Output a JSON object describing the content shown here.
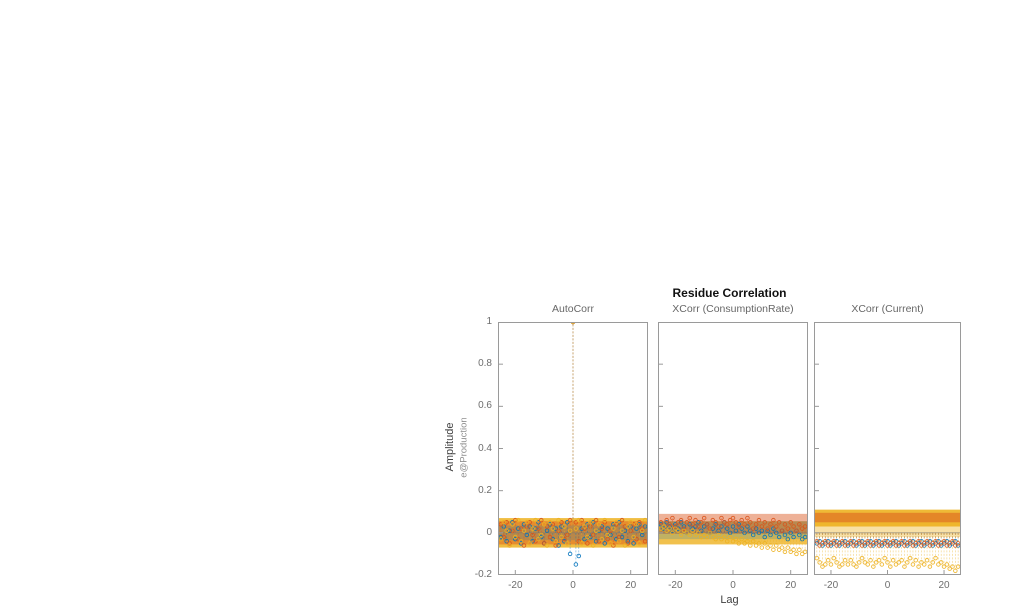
{
  "figure": {
    "title": "Residue Correlation",
    "xlabel": "Lag",
    "ylabel": "Amplitude",
    "ylabel_sub": "e@Production"
  },
  "colors": {
    "series1": "#0072BD",
    "series2": "#D95319",
    "series3": "#EDB120",
    "axis": "#9a9a9a",
    "tick_text": "#6e6e6e"
  },
  "chart_data": [
    {
      "type": "stem",
      "title": "AutoCorr",
      "xlim": [
        -26,
        26
      ],
      "ylim": [
        -0.2,
        1
      ],
      "xticks": [
        -20,
        0,
        20
      ],
      "xticklabels": [
        "-20",
        "0",
        "20"
      ],
      "yticks": [
        -0.2,
        0,
        0.2,
        0.4,
        0.6,
        0.8,
        1
      ],
      "yticklabels": [
        "-0.2",
        "0",
        "0.2",
        "0.4",
        "0.6",
        "0.8",
        "1"
      ],
      "show_yticklabels": true,
      "x_start": -25,
      "x_step": 1,
      "bands": [
        {
          "color": "#EDB120",
          "low": -0.07,
          "high": 0.07,
          "alpha": 0.85
        },
        {
          "color": "#D95319",
          "low": -0.055,
          "high": 0.055,
          "alpha": 0.45
        },
        {
          "color": "#0072BD",
          "low": -0.035,
          "high": 0.035,
          "alpha": 0.2
        }
      ],
      "series": [
        {
          "name": "series1",
          "color": "#0072BD",
          "values": [
            -0.02,
            0.03,
            -0.04,
            0.01,
            0.05,
            -0.03,
            0.02,
            -0.05,
            0.04,
            -0.01,
            0.03,
            -0.04,
            0.02,
            0.05,
            -0.02,
            -0.05,
            0.01,
            0.04,
            -0.03,
            0.02,
            -0.06,
            0.03,
            -0.04,
            0.05,
            -0.1,
            1.0,
            -0.15,
            -0.11,
            0.02,
            -0.03,
            0.04,
            -0.02,
            0.05,
            -0.04,
            0.01,
            0.03,
            -0.05,
            0.02,
            -0.01,
            0.04,
            -0.03,
            0.05,
            -0.02,
            0.01,
            -0.04,
            0.03,
            -0.05,
            0.02,
            0.04,
            -0.01,
            0.03
          ]
        },
        {
          "name": "series2",
          "color": "#D95319",
          "values": [
            0.04,
            -0.02,
            0.05,
            -0.05,
            0.01,
            0.06,
            -0.03,
            0.02,
            -0.06,
            0.03,
            0.05,
            -0.01,
            -0.04,
            0.02,
            0.06,
            -0.05,
            0.03,
            -0.02,
            0.04,
            -0.06,
            0.01,
            0.05,
            -0.03,
            -0.01,
            0.06,
            1.0,
            0.05,
            -0.04,
            0.06,
            0.02,
            -0.05,
            0.03,
            -0.01,
            0.06,
            -0.04,
            0.02,
            0.05,
            -0.03,
            0.01,
            -0.06,
            0.04,
            -0.02,
            0.06,
            0.03,
            -0.05,
            0.01,
            0.04,
            -0.03,
            0.05,
            0.02,
            -0.04
          ]
        },
        {
          "name": "series3",
          "color": "#EDB120",
          "values": [
            -0.03,
            0.05,
            0.01,
            -0.06,
            0.04,
            -0.02,
            0.06,
            -0.04,
            0.01,
            0.05,
            -0.05,
            0.02,
            0.06,
            -0.03,
            -0.01,
            0.04,
            -0.06,
            0.05,
            0.02,
            -0.04,
            0.06,
            -0.02,
            0.03,
            -0.05,
            0.01,
            1.0,
            0.02,
            0.06,
            -0.05,
            0.03,
            -0.02,
            0.05,
            -0.06,
            0.01,
            0.04,
            -0.03,
            0.06,
            -0.01,
            -0.05,
            0.02,
            0.05,
            -0.04,
            0.01,
            -0.06,
            0.03,
            0.05,
            -0.02,
            0.04,
            -0.05,
            0.01,
            0.06
          ]
        }
      ]
    },
    {
      "type": "stem",
      "title": "XCorr (ConsumptionRate)",
      "xlim": [
        -26,
        26
      ],
      "ylim": [
        -0.2,
        1
      ],
      "xticks": [
        -20,
        0,
        20
      ],
      "xticklabels": [
        "-20",
        "0",
        "20"
      ],
      "yticks": [
        -0.2,
        0,
        0.2,
        0.4,
        0.6,
        0.8,
        1
      ],
      "yticklabels": [
        "-0.2",
        "0",
        "0.2",
        "0.4",
        "0.6",
        "0.8",
        "1"
      ],
      "show_yticklabels": false,
      "x_start": -25,
      "x_step": 1,
      "bands": [
        {
          "color": "#EDB120",
          "low": -0.055,
          "high": 0.055,
          "alpha": 0.8
        },
        {
          "color": "#D95319",
          "low": -0.005,
          "high": 0.09,
          "alpha": 0.45
        },
        {
          "color": "#0072BD",
          "low": -0.03,
          "high": 0.055,
          "alpha": 0.2
        }
      ],
      "series": [
        {
          "name": "series1",
          "color": "#0072BD",
          "values": [
            0.04,
            0.02,
            0.05,
            0.03,
            0.01,
            0.04,
            0.02,
            0.05,
            0.03,
            0.0,
            0.04,
            0.02,
            0.03,
            0.05,
            0.01,
            0.03,
            0.04,
            0.0,
            0.02,
            0.04,
            0.01,
            0.03,
            0.05,
            0.02,
            0.0,
            0.03,
            0.01,
            0.04,
            0.02,
            0.0,
            0.03,
            0.01,
            -0.01,
            0.02,
            0.0,
            0.01,
            -0.02,
            0.01,
            -0.01,
            0.02,
            0.0,
            -0.02,
            0.01,
            -0.01,
            -0.03,
            0.0,
            -0.02,
            0.01,
            -0.01,
            -0.03,
            -0.02
          ]
        },
        {
          "name": "series2",
          "color": "#D95319",
          "values": [
            0.05,
            0.03,
            0.06,
            0.04,
            0.07,
            0.03,
            0.05,
            0.06,
            0.02,
            0.05,
            0.07,
            0.04,
            0.06,
            0.03,
            0.05,
            0.07,
            0.04,
            0.02,
            0.06,
            0.05,
            0.03,
            0.07,
            0.05,
            0.04,
            0.06,
            0.07,
            0.05,
            0.03,
            0.06,
            0.04,
            0.07,
            0.05,
            0.02,
            0.04,
            0.06,
            0.03,
            0.05,
            0.02,
            0.04,
            0.06,
            0.03,
            0.05,
            0.01,
            0.04,
            0.02,
            0.05,
            0.03,
            0.01,
            0.04,
            0.02,
            0.03
          ]
        },
        {
          "name": "series3",
          "color": "#EDB120",
          "values": [
            0.02,
            0.03,
            0.01,
            0.02,
            0.0,
            0.02,
            0.01,
            -0.01,
            0.01,
            0.0,
            -0.01,
            0.01,
            -0.01,
            0.0,
            -0.02,
            -0.01,
            -0.02,
            0.0,
            -0.02,
            -0.03,
            -0.01,
            -0.03,
            -0.02,
            -0.04,
            -0.02,
            -0.04,
            -0.03,
            -0.05,
            -0.03,
            -0.05,
            -0.04,
            -0.06,
            -0.04,
            -0.06,
            -0.05,
            -0.07,
            -0.05,
            -0.07,
            -0.06,
            -0.08,
            -0.06,
            -0.08,
            -0.07,
            -0.09,
            -0.07,
            -0.09,
            -0.08,
            -0.1,
            -0.08,
            -0.1,
            -0.09
          ]
        }
      ]
    },
    {
      "type": "stem",
      "title": "XCorr (Current)",
      "xlim": [
        -26,
        26
      ],
      "ylim": [
        -0.2,
        1
      ],
      "xticks": [
        -20,
        0,
        20
      ],
      "xticklabels": [
        "-20",
        "0",
        "20"
      ],
      "yticks": [
        -0.2,
        0,
        0.2,
        0.4,
        0.6,
        0.8,
        1
      ],
      "yticklabels": [
        "-0.2",
        "0",
        "0.2",
        "0.4",
        "0.6",
        "0.8",
        "1"
      ],
      "show_yticklabels": false,
      "x_start": -25,
      "x_step": 1,
      "bands": [
        {
          "color": "#EDB120",
          "low": -0.02,
          "high": 0.05,
          "alpha": 0.4
        },
        {
          "color": "#EDB120",
          "low": 0.03,
          "high": 0.11,
          "alpha": 0.9
        },
        {
          "color": "#D95319",
          "low": 0.05,
          "high": 0.095,
          "alpha": 0.5
        }
      ],
      "series": [
        {
          "name": "series1",
          "color": "#0072BD",
          "values": [
            -0.05,
            -0.04,
            -0.06,
            -0.05,
            -0.04,
            -0.06,
            -0.05,
            -0.04,
            -0.06,
            -0.05,
            -0.04,
            -0.06,
            -0.05,
            -0.04,
            -0.06,
            -0.05,
            -0.04,
            -0.06,
            -0.05,
            -0.04,
            -0.06,
            -0.05,
            -0.04,
            -0.06,
            -0.05,
            -0.04,
            -0.06,
            -0.05,
            -0.04,
            -0.06,
            -0.05,
            -0.04,
            -0.06,
            -0.05,
            -0.04,
            -0.06,
            -0.05,
            -0.04,
            -0.06,
            -0.05,
            -0.04,
            -0.06,
            -0.05,
            -0.04,
            -0.06,
            -0.05,
            -0.04,
            -0.06,
            -0.05,
            -0.04,
            -0.06
          ]
        },
        {
          "name": "series2",
          "color": "#D95319",
          "values": [
            -0.04,
            -0.06,
            -0.05,
            -0.04,
            -0.06,
            -0.05,
            -0.04,
            -0.06,
            -0.05,
            -0.04,
            -0.06,
            -0.05,
            -0.04,
            -0.06,
            -0.05,
            -0.04,
            -0.06,
            -0.05,
            -0.04,
            -0.06,
            -0.05,
            -0.04,
            -0.06,
            -0.05,
            -0.04,
            -0.06,
            -0.05,
            -0.04,
            -0.06,
            -0.05,
            -0.04,
            -0.06,
            -0.05,
            -0.04,
            -0.06,
            -0.05,
            -0.04,
            -0.06,
            -0.05,
            -0.04,
            -0.06,
            -0.05,
            -0.04,
            -0.06,
            -0.05,
            -0.04,
            -0.06,
            -0.05,
            -0.04,
            -0.06,
            -0.05
          ]
        },
        {
          "name": "series3",
          "color": "#EDB120",
          "values": [
            -0.12,
            -0.14,
            -0.16,
            -0.15,
            -0.13,
            -0.15,
            -0.12,
            -0.14,
            -0.16,
            -0.15,
            -0.13,
            -0.15,
            -0.13,
            -0.15,
            -0.16,
            -0.14,
            -0.12,
            -0.14,
            -0.15,
            -0.13,
            -0.16,
            -0.14,
            -0.13,
            -0.15,
            -0.12,
            -0.14,
            -0.16,
            -0.13,
            -0.15,
            -0.14,
            -0.13,
            -0.16,
            -0.14,
            -0.12,
            -0.15,
            -0.13,
            -0.16,
            -0.14,
            -0.15,
            -0.13,
            -0.16,
            -0.14,
            -0.12,
            -0.15,
            -0.14,
            -0.16,
            -0.15,
            -0.17,
            -0.16,
            -0.18,
            -0.16
          ]
        }
      ]
    }
  ]
}
